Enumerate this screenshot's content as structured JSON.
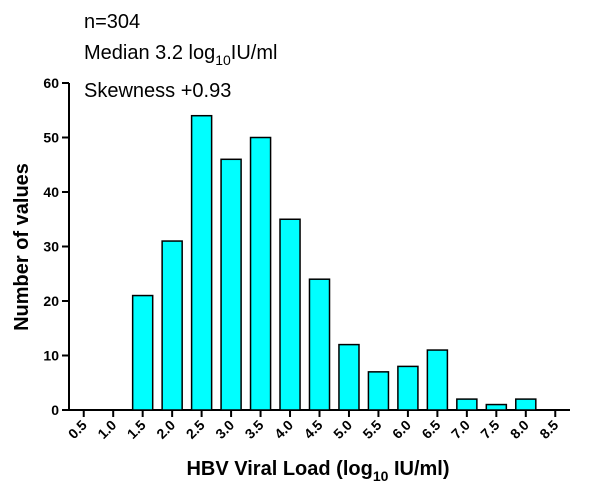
{
  "chart_data": {
    "type": "bar",
    "annotations": {
      "n": "n=304",
      "median_prefix": "Median 3.2 log",
      "median_sub": "10",
      "median_suffix": "IU/ml",
      "skewness": "Skewness +0.93"
    },
    "xlabel": {
      "prefix": "HBV Viral Load (log",
      "sub": "10",
      "suffix": " IU/ml)"
    },
    "ylabel": "Number of values",
    "categories": [
      "0.5",
      "1.0",
      "1.5",
      "2.0",
      "2.5",
      "3.0",
      "3.5",
      "4.0",
      "4.5",
      "5.0",
      "5.5",
      "6.0",
      "6.5",
      "7.0",
      "7.5",
      "8.0",
      "8.5"
    ],
    "values": [
      0,
      0,
      21,
      31,
      54,
      46,
      50,
      35,
      24,
      12,
      7,
      8,
      11,
      2,
      1,
      2,
      0
    ],
    "ylim": [
      0,
      60
    ],
    "yticks": [
      0,
      10,
      20,
      30,
      40,
      50,
      60
    ],
    "bar_color": "#00ffff",
    "bar_edge_color": "#000000",
    "grid": false,
    "legend": "none"
  }
}
